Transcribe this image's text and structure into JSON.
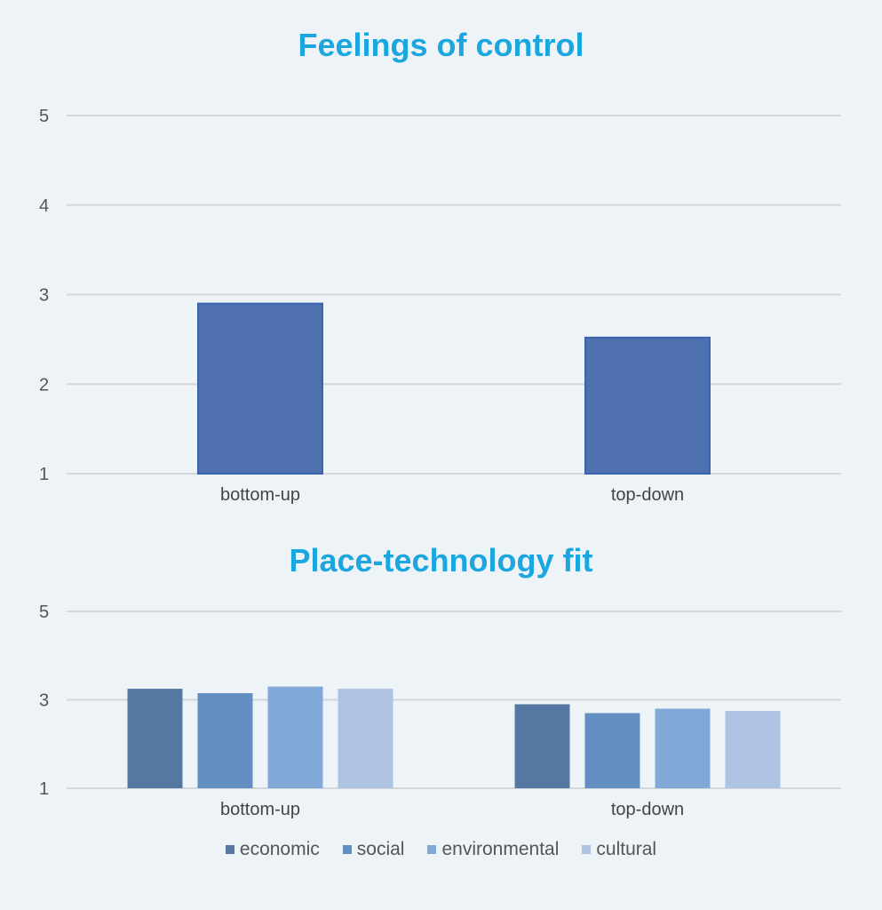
{
  "colors": {
    "title": "#1aa7e0",
    "grid": "#d3d7dc",
    "bar_single": "#4e70ae",
    "series": [
      "#5578a3",
      "#618fc2",
      "#81a8d6",
      "#adc3e1"
    ]
  },
  "chart_data": [
    {
      "type": "bar",
      "title": "Feelings of control",
      "categories": [
        "bottom-up",
        "top-down"
      ],
      "values": [
        2.9,
        2.52
      ],
      "yticks": [
        1,
        2,
        3,
        4,
        5
      ],
      "ylim": [
        1,
        5
      ],
      "grid": true
    },
    {
      "type": "bar",
      "title": "Place-technology fit",
      "categories": [
        "bottom-up",
        "top-down"
      ],
      "series": [
        {
          "name": "economic",
          "values": [
            3.25,
            2.9
          ]
        },
        {
          "name": "social",
          "values": [
            3.15,
            2.7
          ]
        },
        {
          "name": "environmental",
          "values": [
            3.3,
            2.8
          ]
        },
        {
          "name": "cultural",
          "values": [
            3.25,
            2.75
          ]
        }
      ],
      "yticks": [
        1,
        3,
        5
      ],
      "ylim": [
        1,
        5
      ],
      "grid": true,
      "legend": "bottom-center"
    }
  ]
}
